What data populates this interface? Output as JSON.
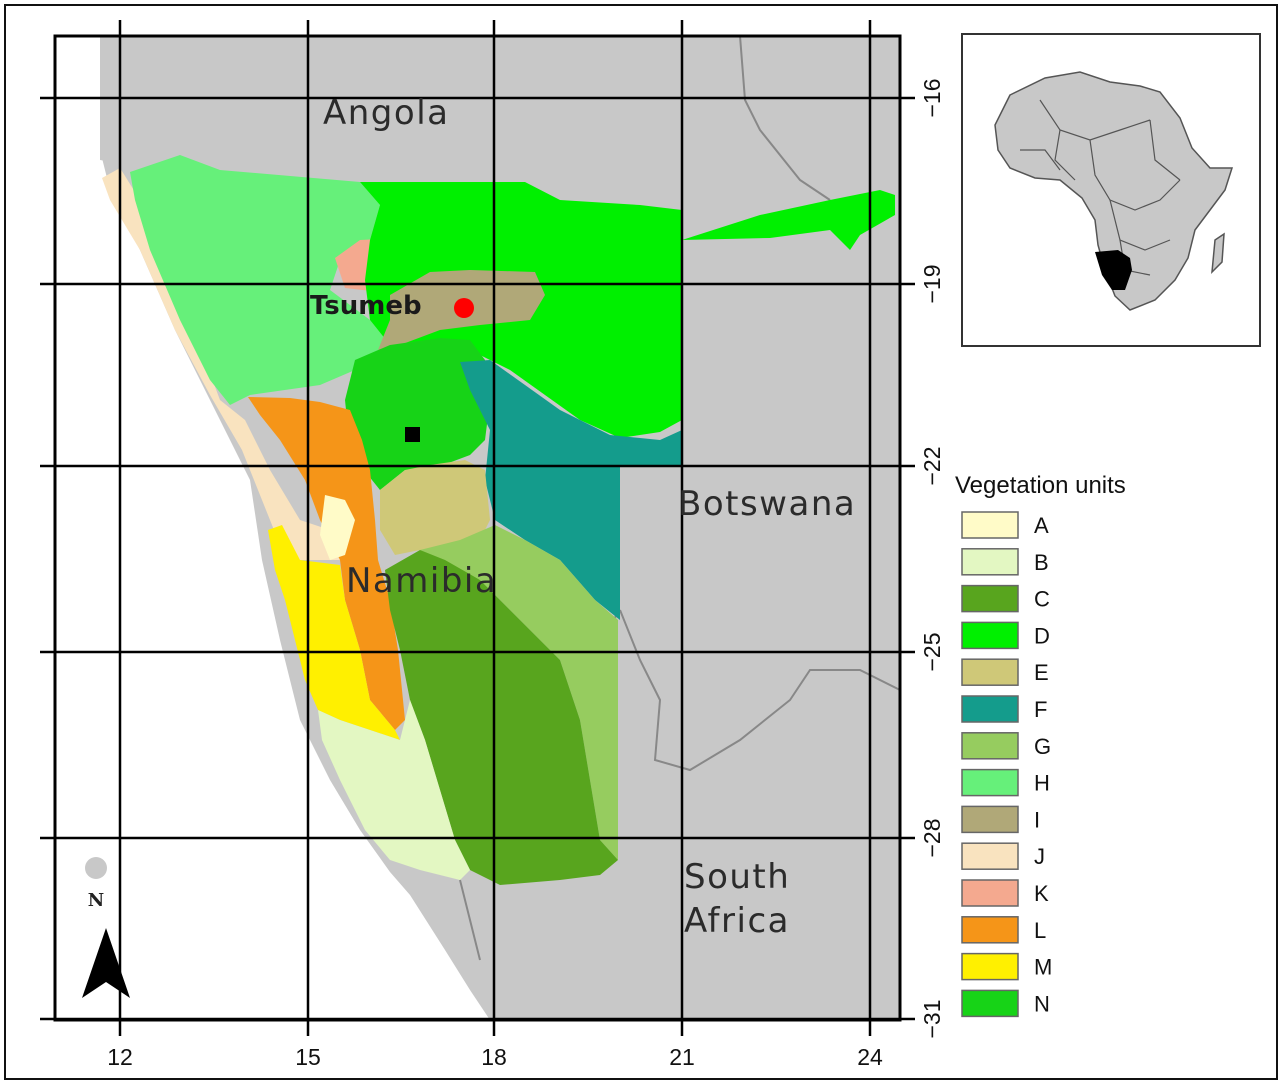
{
  "map": {
    "countries": {
      "angola": "Angola",
      "namibia": "Namibia",
      "botswana": "Botswana",
      "south_africa_line1": "South",
      "south_africa_line2": "Africa"
    },
    "city": "Tsumeb",
    "x_ticks": [
      "12",
      "15",
      "18",
      "21",
      "24"
    ],
    "y_ticks": [
      "−16",
      "−19",
      "−22",
      "−25",
      "−28",
      "−31"
    ],
    "north_label": "N",
    "colors": {
      "neighbor_gray": "#c8c8c8",
      "ocean_white": "#ffffff",
      "city_marker": "#ff0000",
      "site_marker": "#000000"
    }
  },
  "legend": {
    "title": "Vegetation units",
    "items": [
      {
        "label": "A",
        "color": "#fffbc8"
      },
      {
        "label": "B",
        "color": "#e3f7c2"
      },
      {
        "label": "C",
        "color": "#58a51e"
      },
      {
        "label": "D",
        "color": "#00f000"
      },
      {
        "label": "E",
        "color": "#cfc878"
      },
      {
        "label": "F",
        "color": "#149c8c"
      },
      {
        "label": "G",
        "color": "#96cc5f"
      },
      {
        "label": "H",
        "color": "#66f07a"
      },
      {
        "label": "I",
        "color": "#b0a878"
      },
      {
        "label": "J",
        "color": "#f9e3bf"
      },
      {
        "label": "K",
        "color": "#f4a98f"
      },
      {
        "label": "L",
        "color": "#f59518"
      },
      {
        "label": "M",
        "color": "#fff000"
      },
      {
        "label": "N",
        "color": "#17d317"
      }
    ]
  }
}
